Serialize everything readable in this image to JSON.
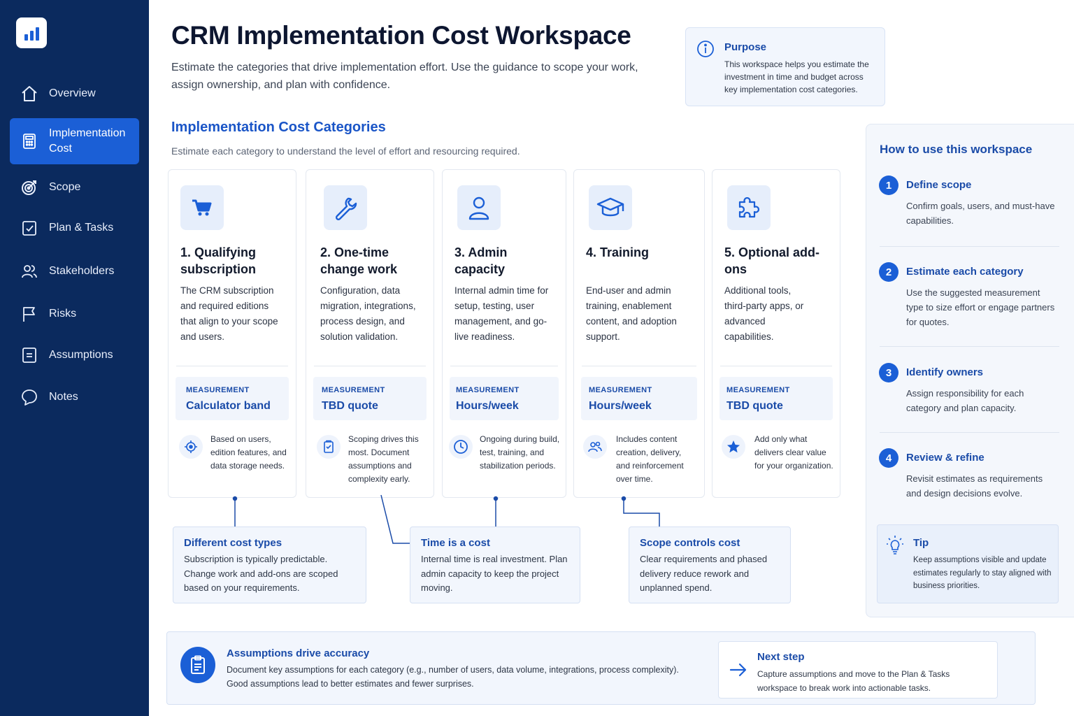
{
  "sidebar": {
    "logo_icon": "bar-chart-icon",
    "items": [
      {
        "label": "Overview",
        "icon": "home-icon"
      },
      {
        "label": "Implementation Cost",
        "icon": "calculator-icon",
        "active": true
      },
      {
        "label": "Scope",
        "icon": "target-icon"
      },
      {
        "label": "Plan & Tasks",
        "icon": "checklist-icon"
      },
      {
        "label": "Stakeholders",
        "icon": "users-icon"
      },
      {
        "label": "Risks",
        "icon": "flag-icon"
      },
      {
        "label": "Assumptions",
        "icon": "list-icon"
      },
      {
        "label": "Notes",
        "icon": "chat-bubble-icon"
      }
    ]
  },
  "header": {
    "title": "CRM Implementation Cost Workspace",
    "subtitle": "Estimate the categories that drive implementation effort. Use the guidance to scope your work, assign ownership, and plan with confidence."
  },
  "purpose": {
    "title": "Purpose",
    "text": "This workspace helps you estimate the investment in time and budget across key implementation cost categories."
  },
  "section": {
    "title": "Implementation Cost Categories",
    "subtitle": "Estimate each category to understand the level of effort and resourcing required."
  },
  "categories": [
    {
      "title": "1. Qualifying subscription",
      "desc": "The CRM subscription and required editions that align to your scope and users.",
      "measurement_label": "MEASUREMENT",
      "measurement": "Calculator band",
      "note": "Based on users, edition features, and data storage needs.",
      "icon": "cart-icon",
      "note_icon": "crosshair-icon"
    },
    {
      "title": "2. One-time change work",
      "desc": "Configuration, data migration, integrations, process design, and solution validation.",
      "measurement_label": "MEASUREMENT",
      "measurement": "TBD quote",
      "note": "Scoping drives this most. Document assumptions and complexity early.",
      "icon": "wrench-icon",
      "note_icon": "clipboard-check-icon"
    },
    {
      "title": "3. Admin capacity",
      "desc": "Internal admin time for setup, testing, user management, and go-live readiness.",
      "measurement_label": "MEASUREMENT",
      "measurement": "Hours/week",
      "note": "Ongoing during build, test, training, and stabilization periods.",
      "icon": "user-icon",
      "note_icon": "clock-icon"
    },
    {
      "title": "4. Training",
      "desc": "End-user and admin training, enablement content, and adoption support.",
      "measurement_label": "MEASUREMENT",
      "measurement": "Hours/week",
      "note": "Includes content creation, delivery, and reinforcement over time.",
      "icon": "graduation-cap-icon",
      "note_icon": "group-icon"
    },
    {
      "title": "5. Optional add-ons",
      "desc": "Additional tools, third-party apps, or advanced capabilities.",
      "measurement_label": "MEASUREMENT",
      "measurement": "TBD quote",
      "note": "Add only what delivers clear value for your organization.",
      "icon": "puzzle-icon",
      "note_icon": "star-icon"
    }
  ],
  "callouts": [
    {
      "title": "Different cost types",
      "text": "Subscription is typically predictable. Change work and add-ons are scoped based on your requirements."
    },
    {
      "title": "Time is a cost",
      "text": "Internal time is real investment. Plan admin capacity to keep the project moving."
    },
    {
      "title": "Scope controls cost",
      "text": "Clear requirements and phased delivery reduce rework and unplanned spend."
    }
  ],
  "how_to": {
    "title": "How to use this workspace",
    "steps": [
      {
        "num": "1",
        "title": "Define scope",
        "text": "Confirm goals, users, and must-have capabilities."
      },
      {
        "num": "2",
        "title": "Estimate each category",
        "text": "Use the suggested measurement type to size effort or engage partners for quotes."
      },
      {
        "num": "3",
        "title": "Identify owners",
        "text": "Assign responsibility for each category and plan capacity."
      },
      {
        "num": "4",
        "title": "Review & refine",
        "text": "Revisit estimates as requirements and design decisions evolve."
      }
    ],
    "tip": {
      "title": "Tip",
      "text": "Keep assumptions visible and update estimates regularly to stay aligned with business priorities."
    }
  },
  "banner": {
    "title": "Assumptions drive accuracy",
    "text": "Document key assumptions for each category (e.g., number of users, data volume, integrations, process complexity). Good assumptions lead to better estimates and fewer surprises.",
    "next_title": "Next step",
    "next_text": "Capture assumptions and move to the Plan & Tasks workspace to break work into actionable tasks."
  },
  "colors": {
    "sidebar": "#0b2a5e",
    "accent": "#1b5fd6",
    "link": "#1a4ba8"
  }
}
